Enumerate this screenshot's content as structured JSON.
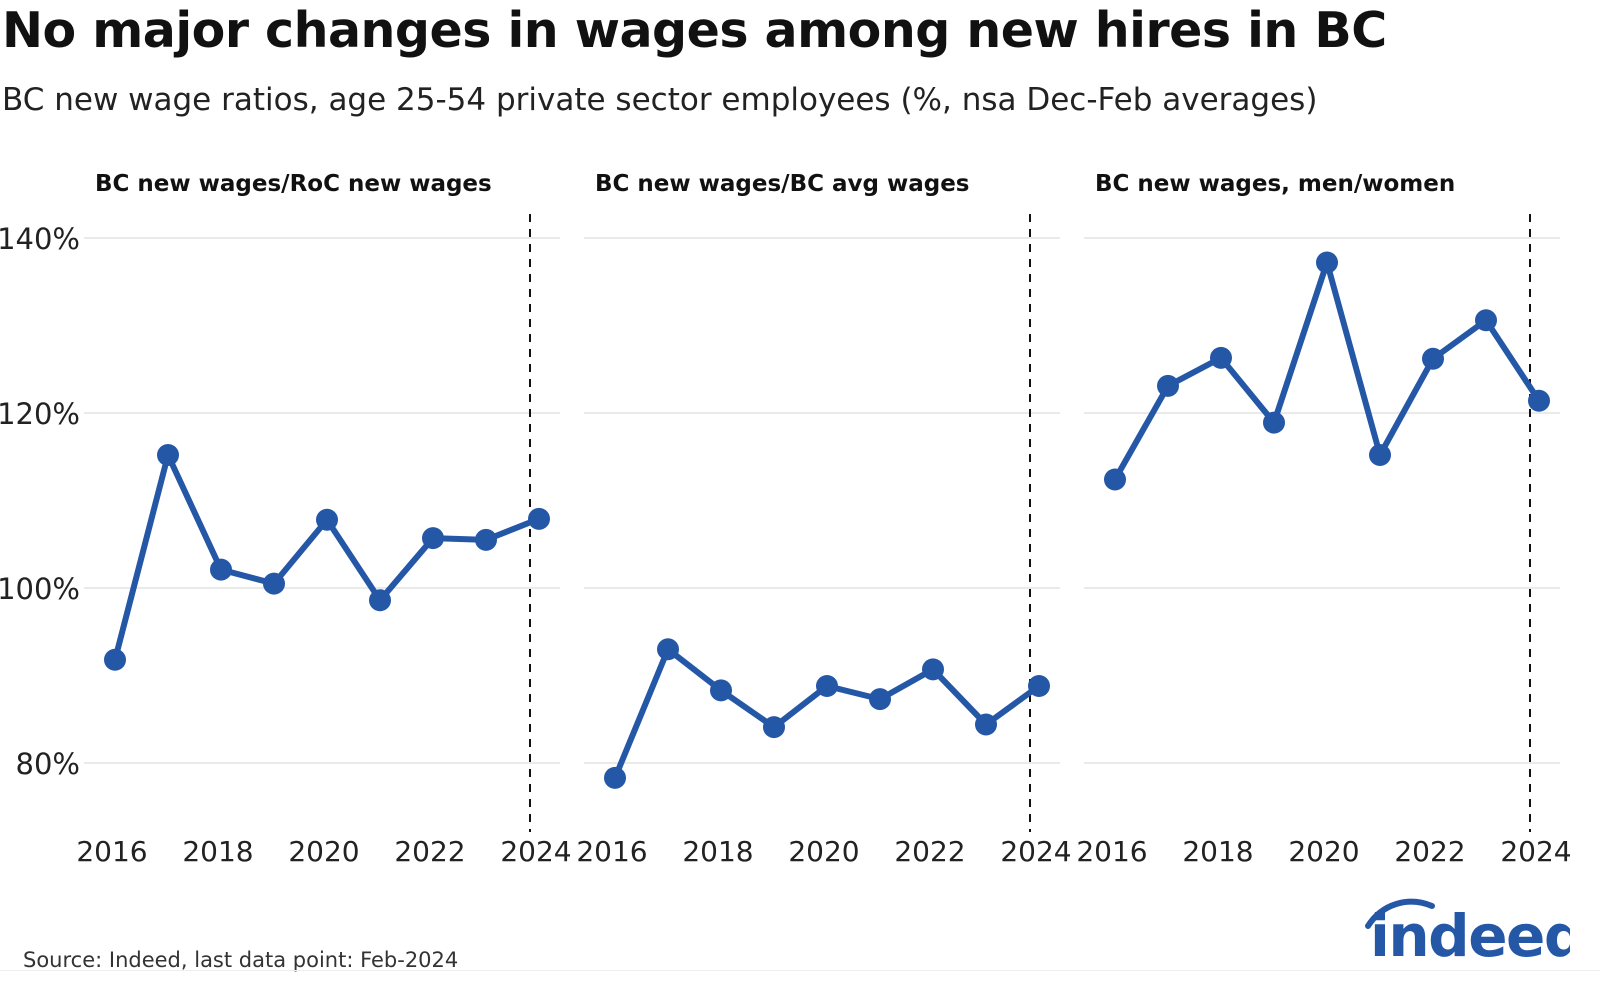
{
  "title": "No major changes in wages among new hires in BC",
  "subtitle": "BC new wage ratios, age 25-54 private sector employees (%, nsa Dec-Feb averages)",
  "source": "Source: Indeed, last data point: Feb-2024",
  "logo_text": "indeed",
  "colors": {
    "line": "#2557a7",
    "grid": "#dddddd",
    "text": "#111111"
  },
  "chart_data": [
    {
      "type": "line",
      "title": "BC new wages/RoC new wages",
      "x": [
        2016,
        2017,
        2018,
        2019,
        2020,
        2021,
        2022,
        2023,
        2024
      ],
      "values": [
        91.8,
        115.2,
        102.1,
        100.5,
        107.8,
        98.6,
        105.7,
        105.5,
        107.9
      ],
      "ylim": [
        72,
        143
      ],
      "yticks": [
        80,
        100,
        120,
        140
      ],
      "ytick_labels": [
        "80%",
        "100%",
        "120%",
        "140%"
      ],
      "xticks": [
        2016,
        2018,
        2020,
        2022,
        2024
      ],
      "reference_line_x": 2024,
      "grid": true
    },
    {
      "type": "line",
      "title": "BC new wages/BC avg wages",
      "x": [
        2016,
        2017,
        2018,
        2019,
        2020,
        2021,
        2022,
        2023,
        2024
      ],
      "values": [
        78.3,
        93.0,
        88.3,
        84.1,
        88.8,
        87.3,
        90.7,
        84.4,
        88.8
      ],
      "ylim": [
        72,
        143
      ],
      "xticks": [
        2016,
        2018,
        2020,
        2022,
        2024
      ],
      "reference_line_x": 2024,
      "grid": true
    },
    {
      "type": "line",
      "title": "BC new wages, men/women",
      "x": [
        2016,
        2017,
        2018,
        2019,
        2020,
        2021,
        2022,
        2023,
        2024
      ],
      "values": [
        112.4,
        123.1,
        126.3,
        118.9,
        137.2,
        115.2,
        126.2,
        130.6,
        121.4
      ],
      "ylim": [
        72,
        143
      ],
      "xticks": [
        2016,
        2018,
        2020,
        2022,
        2024
      ],
      "reference_line_x": 2024,
      "grid": true
    }
  ]
}
